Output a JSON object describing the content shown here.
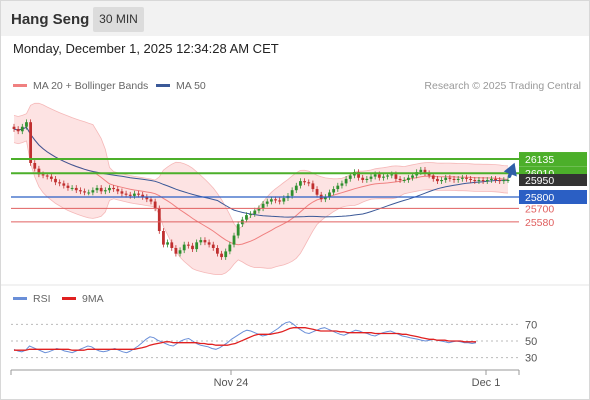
{
  "header": {
    "symbol": "Hang Seng",
    "timeframe": "30 MIN"
  },
  "datetime": "Monday, December 1, 2025 12:34:28 AM CET",
  "legend": {
    "ma20_bb": "MA 20 + Bollinger Bands",
    "ma50": "MA 50",
    "rsi": "RSI",
    "ma9": "9MA"
  },
  "watermark": "Research © 2025 Trading Central",
  "colors": {
    "ma20": "#f08080",
    "ma50": "#3b5998",
    "bb_fill": "#fde3e3",
    "resistance": "#4caf2a",
    "pivot": "#2b5fc4",
    "support": "#e06060",
    "candle_up": "#2f8f2f",
    "candle_down": "#c03030",
    "arrow": "#2f5fa8",
    "rsi": "#6a8fd8",
    "rsi_ma": "#e02020"
  },
  "chart_data": {
    "type": "candlestick",
    "levels": [
      {
        "label": "26135",
        "value": 26135,
        "kind": "resistance"
      },
      {
        "label": "26010",
        "value": 26010,
        "kind": "resistance"
      },
      {
        "label": "25950",
        "value": 25950,
        "kind": "last"
      },
      {
        "label": "25800",
        "value": 25800,
        "kind": "pivot"
      },
      {
        "label": "25700",
        "value": 25700,
        "kind": "support"
      },
      {
        "label": "25580",
        "value": 25580,
        "kind": "support"
      }
    ],
    "x_ticks": [
      "Nov 24",
      "Dec 1"
    ],
    "close": [
      26400,
      26380,
      26420,
      26460,
      26100,
      26050,
      26000,
      25990,
      25980,
      25960,
      25930,
      25920,
      25900,
      25880,
      25880,
      25860,
      25850,
      25840,
      25840,
      25860,
      25880,
      25850,
      25860,
      25880,
      25870,
      25850,
      25830,
      25820,
      25810,
      25830,
      25820,
      25800,
      25780,
      25760,
      25700,
      25500,
      25380,
      25400,
      25350,
      25300,
      25330,
      25380,
      25370,
      25340,
      25400,
      25420,
      25400,
      25380,
      25350,
      25300,
      25270,
      25320,
      25380,
      25460,
      25560,
      25600,
      25640,
      25650,
      25680,
      25700,
      25740,
      25760,
      25780,
      25770,
      25760,
      25790,
      25810,
      25860,
      25900,
      25940,
      25930,
      25920,
      25870,
      25820,
      25780,
      25800,
      25840,
      25870,
      25900,
      25920,
      25960,
      25990,
      26020,
      25970,
      25950,
      25960,
      25980,
      26000,
      25970,
      25980,
      25990,
      26000,
      25960,
      25950,
      25950,
      25970,
      25990,
      26020,
      26040,
      26010,
      25990,
      25960,
      25940,
      25950,
      25970,
      25960,
      25950,
      25960,
      25970,
      25960,
      25950,
      25940,
      25950,
      25940,
      25950,
      25960,
      25950,
      25940,
      25950,
      25950
    ],
    "rsi_axis": [
      30,
      50,
      70
    ],
    "rsi_levels": [
      30,
      50,
      70
    ],
    "rsi_series": [
      40,
      38,
      37,
      39,
      44,
      42,
      40,
      38,
      36,
      37,
      39,
      41,
      40,
      38,
      37,
      36,
      38,
      40,
      42,
      44,
      43,
      40,
      38,
      37,
      38,
      40,
      41,
      39,
      37,
      36,
      38,
      41,
      44,
      48,
      52,
      55,
      54,
      51,
      49,
      47,
      45,
      44,
      47,
      50,
      52,
      53,
      50,
      47,
      45,
      44,
      43,
      41,
      40,
      42,
      45,
      48,
      52,
      55,
      58,
      61,
      63,
      62,
      60,
      58,
      56,
      57,
      59,
      62,
      65,
      69,
      72,
      73,
      70,
      66,
      63,
      60,
      59,
      61,
      63,
      65,
      66,
      64,
      62,
      60,
      58,
      57,
      59,
      61,
      63,
      62,
      60,
      59,
      57,
      56,
      58,
      60,
      61,
      62,
      60,
      58,
      56,
      55,
      54,
      53,
      52,
      51,
      50,
      51,
      52,
      51,
      50,
      49,
      48,
      49,
      50,
      49,
      48,
      48,
      47,
      48
    ],
    "rsi_ma": [
      39,
      39,
      39,
      39,
      40,
      40,
      40,
      40,
      40,
      40,
      40,
      40,
      40,
      40,
      40,
      39,
      39,
      39,
      39,
      40,
      40,
      40,
      40,
      40,
      40,
      40,
      40,
      40,
      40,
      40,
      40,
      40,
      41,
      42,
      43,
      45,
      46,
      47,
      48,
      49,
      49,
      48,
      48,
      48,
      48,
      48,
      48,
      48,
      47,
      47,
      46,
      46,
      45,
      45,
      45,
      45,
      46,
      47,
      49,
      51,
      53,
      55,
      57,
      58,
      58,
      58,
      58,
      59,
      60,
      61,
      63,
      65,
      66,
      66,
      66,
      66,
      65,
      64,
      63,
      62,
      62,
      62,
      62,
      62,
      61,
      61,
      60,
      60,
      60,
      60,
      60,
      60,
      60,
      59,
      59,
      59,
      59,
      59,
      59,
      59,
      58,
      58,
      57,
      56,
      55,
      54,
      53,
      52,
      52,
      51,
      51,
      51,
      50,
      50,
      50,
      50,
      49,
      49,
      49,
      49
    ]
  }
}
